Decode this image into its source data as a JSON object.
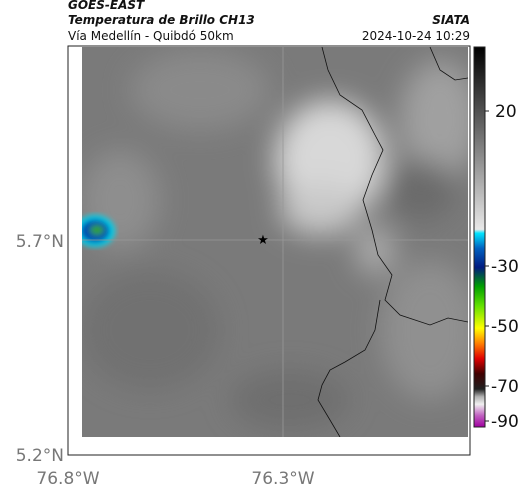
{
  "header": {
    "source_name": "GOES-EAST",
    "product": "Temperatura de Brillo CH13",
    "region": "Vía Medellín - Quibdó 50km",
    "agency": "SIATA",
    "datetime": "2024-10-24 10:29"
  },
  "map": {
    "xticks": [
      "76.8°W",
      "76.3°W"
    ],
    "yticks": [
      "5.7°N",
      "5.2°N"
    ]
  },
  "colorbar": {
    "ticks": [
      "20",
      "-30",
      "-50",
      "-70",
      "-90"
    ]
  }
}
